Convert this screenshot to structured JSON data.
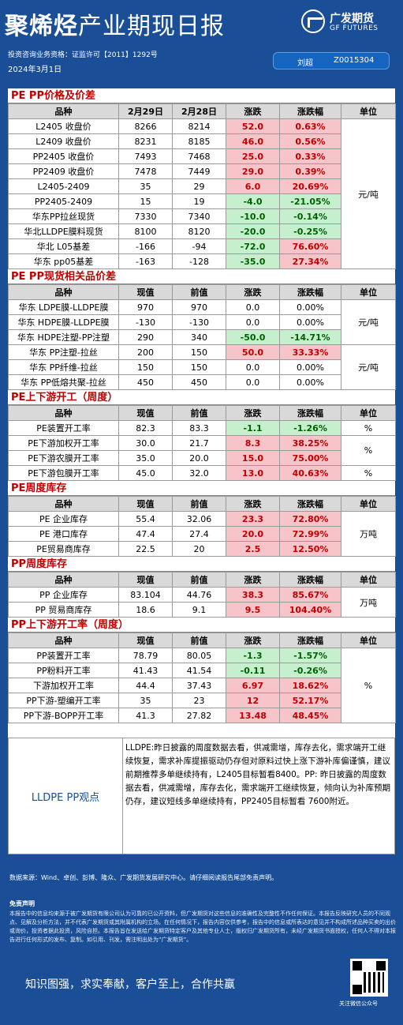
{
  "header": {
    "title_bold": "聚烯烃",
    "title_rest": "产业期现日报",
    "logo_cn": "广发期货",
    "logo_en": "GF FUTURES",
    "license": "投资咨询业务资格：证监许可【2011】1292号",
    "date": "2024年3月1日",
    "author_name": "刘超",
    "author_id": "Z0015304"
  },
  "sections": [
    {
      "title": "PE PP价格及价差",
      "headers": [
        "品种",
        "2月29日",
        "2月28日",
        "涨跌",
        "涨跌幅",
        "单位"
      ],
      "rows": [
        [
          "L2405 收盘价",
          "8266",
          "8214",
          "52.0",
          "0.63%",
          "up"
        ],
        [
          "L2409 收盘价",
          "8231",
          "8185",
          "46.0",
          "0.56%",
          "up"
        ],
        [
          "PP2405 收盘价",
          "7493",
          "7468",
          "25.0",
          "0.33%",
          "up"
        ],
        [
          "PP2409 收盘价",
          "7478",
          "7449",
          "29.0",
          "0.39%",
          "up"
        ],
        [
          "L2405-2409",
          "35",
          "29",
          "6.0",
          "20.69%",
          "up"
        ],
        [
          "PP2405-2409",
          "15",
          "19",
          "-4.0",
          "-21.05%",
          "down"
        ],
        [
          "华东PP拉丝现货",
          "7330",
          "7340",
          "-10.0",
          "-0.14%",
          "down"
        ],
        [
          "华北LLDPE膜料现货",
          "8100",
          "8120",
          "-20.0",
          "-0.25%",
          "down"
        ],
        [
          "华北 L05基差",
          "-166",
          "-94",
          "-72.0",
          "76.60%",
          "mixed"
        ],
        [
          "华东 pp05基差",
          "-163",
          "-128",
          "-35.0",
          "27.34%",
          "mixed"
        ]
      ],
      "units": [
        {
          "text": "元/吨",
          "span": 10
        }
      ]
    },
    {
      "title": "PE PP现货相关品价差",
      "headers": [
        "品种",
        "现值",
        "前值",
        "涨跌",
        "涨跌幅",
        "单位"
      ],
      "rows": [
        [
          "华东 LDPE膜-LLDPE膜",
          "970",
          "970",
          "0.0",
          "0.00%",
          "flat"
        ],
        [
          "华东 HDPE膜-LLDPE膜",
          "-130",
          "-130",
          "0.0",
          "0.00%",
          "flat"
        ],
        [
          "华东 HDPE注塑-PP注塑",
          "290",
          "340",
          "-50.0",
          "-14.71%",
          "down"
        ],
        [
          "华东 PP注塑-拉丝",
          "200",
          "150",
          "50.0",
          "33.33%",
          "up"
        ],
        [
          "华东 PP纤维-拉丝",
          "150",
          "150",
          "0.0",
          "0.00%",
          "flat"
        ],
        [
          "华东 PP低熔共聚-拉丝",
          "450",
          "450",
          "0.0",
          "0.00%",
          "flat"
        ]
      ],
      "units": [
        {
          "text": "元/吨",
          "span": 3
        },
        {
          "text": "元/吨",
          "span": 3
        }
      ]
    },
    {
      "title": "PE上下游开工（周度）",
      "headers": [
        "品种",
        "现值",
        "前值",
        "涨跌",
        "涨跌幅",
        "单位"
      ],
      "rows": [
        [
          "PE装置开工率",
          "82.3",
          "83.3",
          "-1.1",
          "-1.26%",
          "down"
        ],
        [
          "PE下游加权开工率",
          "30.0",
          "21.7",
          "8.3",
          "38.25%",
          "up"
        ],
        [
          "PE下游农膜开工率",
          "35.0",
          "20.0",
          "15.0",
          "75.00%",
          "up"
        ],
        [
          "PE下游包膜开工率",
          "45.0",
          "32.0",
          "13.0",
          "40.63%",
          "up"
        ]
      ],
      "units": [
        {
          "text": "%",
          "span": 1
        },
        {
          "text": "%",
          "span": 2
        },
        {
          "text": "%",
          "span": 1
        }
      ]
    },
    {
      "title": "PE周度库存",
      "headers": [
        "品种",
        "现值",
        "前值",
        "涨跌",
        "涨跌幅",
        "单位"
      ],
      "rows": [
        [
          "PE 企业库存",
          "55.4",
          "32.06",
          "23.3",
          "72.80%",
          "up"
        ],
        [
          "PE 港口库存",
          "47.4",
          "27.4",
          "20.0",
          "72.99%",
          "up"
        ],
        [
          "PE贸易商库存",
          "22.5",
          "20",
          "2.5",
          "12.50%",
          "up"
        ]
      ],
      "units": [
        {
          "text": "万吨",
          "span": 3
        }
      ]
    },
    {
      "title": "PP周度库存",
      "headers": [
        "品种",
        "现值",
        "前值",
        "涨跌",
        "涨跌幅",
        "单位"
      ],
      "rows": [
        [
          "PP 企业库存",
          "83.104",
          "44.76",
          "38.3",
          "85.67%",
          "up"
        ],
        [
          "PP 贸易商库存",
          "18.6",
          "9.1",
          "9.5",
          "104.40%",
          "up"
        ]
      ],
      "units": [
        {
          "text": "万吨",
          "span": 2
        }
      ]
    },
    {
      "title": "PP上下游开工率（周度）",
      "headers": [
        "品种",
        "现值",
        "前值",
        "涨跌",
        "涨跌幅",
        "单位"
      ],
      "rows": [
        [
          "PP装置开工率",
          "78.79",
          "80.05",
          "-1.3",
          "-1.57%",
          "down"
        ],
        [
          "PP粉料开工率",
          "41.43",
          "41.54",
          "-0.11",
          "-0.26%",
          "down"
        ],
        [
          "下游加权开工率",
          "44.4",
          "37.43",
          "6.97",
          "18.62%",
          "up"
        ],
        [
          "PP下游-塑编开工率",
          "35",
          "23",
          "12",
          "52.17%",
          "up"
        ],
        [
          "PP下游-BOPP开工率",
          "41.3",
          "27.82",
          "13.48",
          "48.45%",
          "up"
        ]
      ],
      "units": [
        {
          "text": "%",
          "span": 5
        }
      ]
    }
  ],
  "view": {
    "label": "LLDPE  PP观点",
    "text": "LLDPE:昨日披露的周度数据去看，供减需增，库存去化，需求端开工继续恢复，需求补库提振驱动仍存但对原料过快上涨下游补库偏谨慎，建议前期推荐多单继续持有，L2405目标暂看8400。PP: 昨日披露的周度数据去看，供减需增，库存去化，需求端开工继续恢复，倾向认为补库预期仍存，建议短线多单继续持有，PP2405目标暂看 7600附近。"
  },
  "footer": {
    "source": "数据来源：Wind、卓创、彭博、隆众、广发期货发展研究中心。请仔细阅读报告尾部免责声明。",
    "disclaimer_title": "免责声明",
    "disclaimer": "本报告中的信息均来源于被广发期货有限公司认为可靠的已公开资料，但广发期货对这些信息的准确性及完整性不作任何保证。本报告反映研究人员的不同观点、见解及分析方法，并不代表广发期货或其附属机构的立场。在任何情况下，报告内容仅供参考，报告中的信息或所表达的意见并不构成所述品种买卖的出价或询价，投资者据此投资，风险自担。本报告旨在发送给广发期货特定客户及其他专业人士，版权归广发期货所有，未经广发期货书面授权，任何人不得对本报告进行任何形式的发布、复制。如引用、刊发，需注明出处为“广发期货”。",
    "slogan": "知识图强，求实奉献，客户至上，合作共赢",
    "qr_label": "关注微信公众号"
  }
}
